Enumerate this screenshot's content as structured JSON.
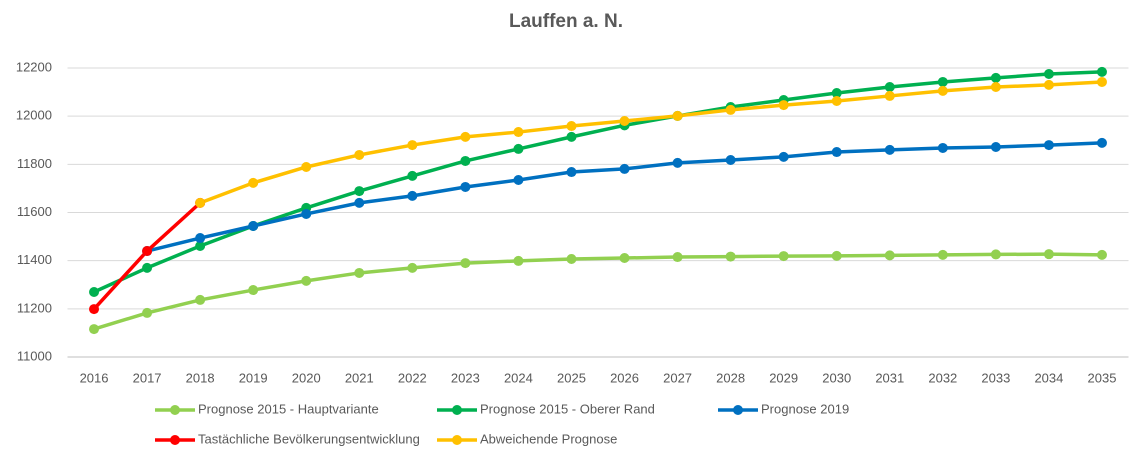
{
  "chart_data": {
    "type": "line",
    "title": "Lauffen a. N.",
    "categories": [
      "2016",
      "2017",
      "2018",
      "2019",
      "2020",
      "2021",
      "2022",
      "2023",
      "2024",
      "2025",
      "2026",
      "2027",
      "2028",
      "2029",
      "2030",
      "2031",
      "2032",
      "2033",
      "2034",
      "2035"
    ],
    "ylim": [
      11000,
      12200
    ],
    "yticks": [
      11000,
      11200,
      11400,
      11600,
      11800,
      12000,
      12200
    ],
    "grid": true,
    "legend": "bottom",
    "series": [
      {
        "name": "Prognose 2015 - Hauptvariante",
        "color": "#92d050",
        "values": [
          11116,
          11183,
          11237,
          11278,
          11316,
          11349,
          11370,
          11390,
          11399,
          11407,
          11411,
          11415,
          11417,
          11419,
          11420,
          11422,
          11424,
          11426,
          11427,
          11424
        ]
      },
      {
        "name": "Prognose 2015 - Oberer Rand",
        "color": "#00b050",
        "values": [
          11270,
          11370,
          11461,
          11544,
          11619,
          11689,
          11752,
          11814,
          11864,
          11914,
          11962,
          12001,
          12038,
          12067,
          12096,
          12121,
          12142,
          12159,
          12175,
          12184
        ]
      },
      {
        "name": "Prognose 2019",
        "color": "#0070c0",
        "values": [
          null,
          11440,
          11494,
          11544,
          11594,
          11640,
          11669,
          11706,
          11735,
          11768,
          11781,
          11806,
          11818,
          11831,
          11851,
          11860,
          11868,
          11872,
          11880,
          11889
        ]
      },
      {
        "name": "Tastächliche Bevölkerungsentwicklung",
        "color": "#ff0000",
        "values": [
          11199,
          11440,
          11640,
          null,
          null,
          null,
          null,
          null,
          null,
          null,
          null,
          null,
          null,
          null,
          null,
          null,
          null,
          null,
          null,
          null
        ]
      },
      {
        "name": "Abweichende Prognose",
        "color": "#ffc000",
        "values": [
          null,
          null,
          11640,
          11723,
          11789,
          11839,
          11880,
          11914,
          11934,
          11959,
          11980,
          12001,
          12026,
          12046,
          12063,
          12084,
          12105,
          12121,
          12130,
          12142
        ]
      }
    ]
  }
}
